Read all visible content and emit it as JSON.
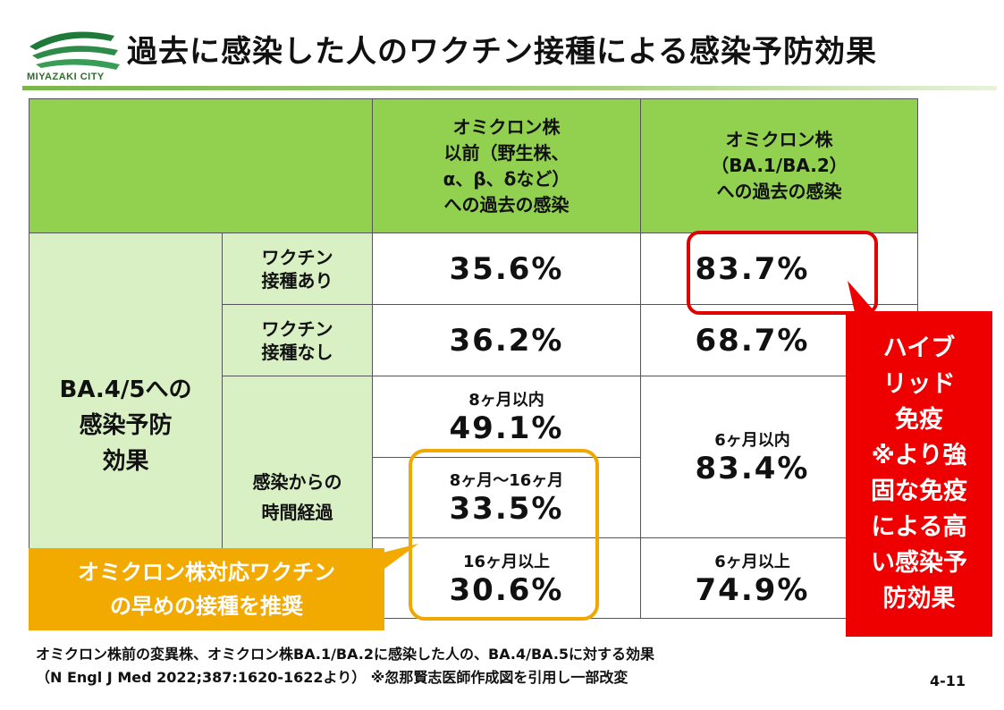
{
  "header": {
    "title": "過去に感染した人のワクチン接種による感染予防効果",
    "logo_text": "MIYAZAKI CITY"
  },
  "table": {
    "col_headers": [
      "オミクロン株\n以前（野生株、\nα、β、δなど）\nへの過去の感染",
      "オミクロン株\n（BA.1/BA.2）\nへの過去の感染"
    ],
    "row_group_label": "BA.4/5への\n感染予防\n効果",
    "rows": {
      "vax_yes": {
        "label": "ワクチン\n接種あり",
        "pre_omicron": "35.6%",
        "omicron": "83.7%"
      },
      "vax_no": {
        "label": "ワクチン\n接種なし",
        "pre_omicron": "36.2%",
        "omicron": "68.7%"
      },
      "time_label": "感染からの\n時間経過",
      "t1": {
        "sub": "8ヶ月以内",
        "value": "49.1%"
      },
      "t2": {
        "sub": "8ヶ月～16ヶ月",
        "value": "33.5%"
      },
      "t3": {
        "sub": "16ヶ月以上",
        "value": "30.6%"
      },
      "o1": {
        "sub": "6ヶ月以内",
        "value": "83.4%"
      },
      "o2": {
        "sub": "6ヶ月以上",
        "value": "74.9%"
      }
    }
  },
  "callouts": {
    "hybrid": "ハイブ\nリッド\n免疫\n※より強\n固な免疫\nによる高\nい感染予\n防効果",
    "recommend": "オミクロン株対応ワクチン\nの早めの接種を推奨"
  },
  "footer": {
    "line1": "オミクロン株前の変異株、オミクロン株BA.1/BA.2に感染した人の、BA.4/BA.5に対する効果",
    "line2": "（N Engl J Med 2022;387:1620-1622より） ※忽那賢志医師作成図を引用し一部改変",
    "page": "4-11"
  },
  "colors": {
    "header_green": "#92d050",
    "row_green": "#d9f0c4",
    "highlight_red": "#ee0000",
    "highlight_orange": "#f2a900"
  }
}
